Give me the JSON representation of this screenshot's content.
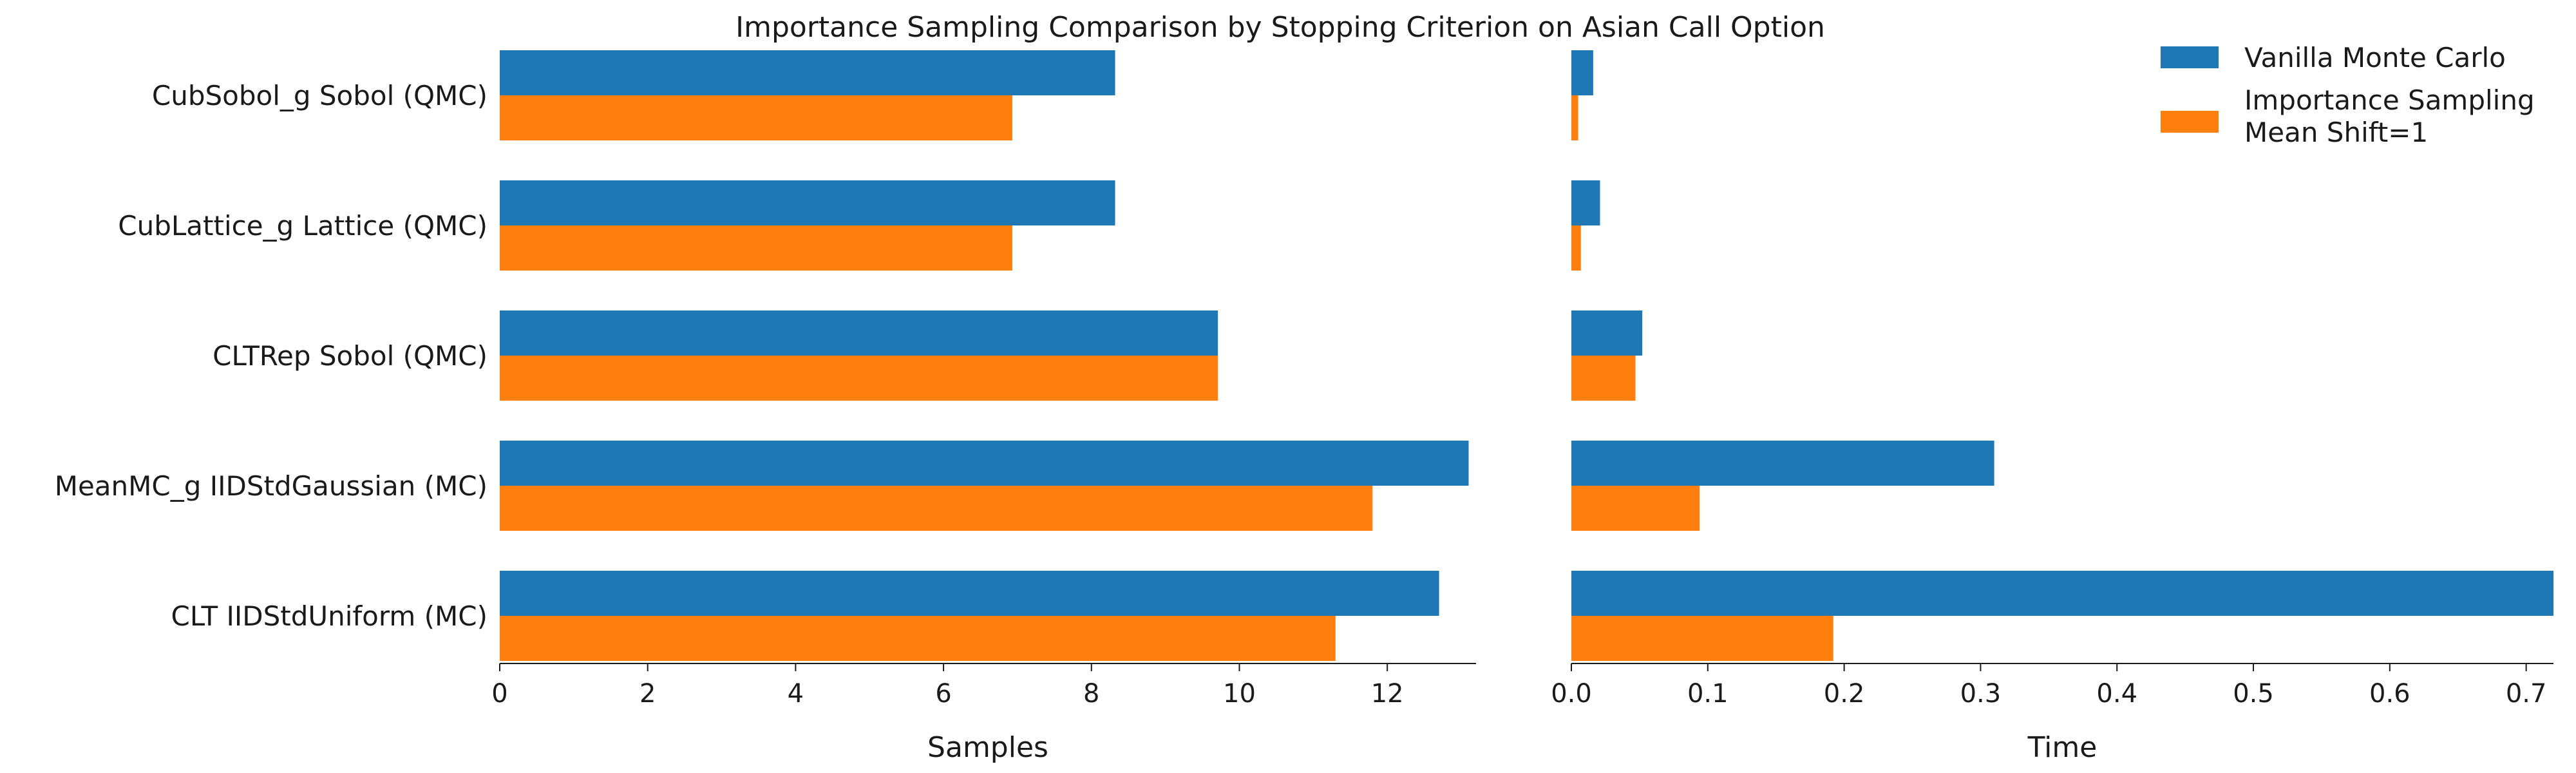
{
  "chart_data": {
    "type": "bar",
    "orientation": "horizontal",
    "title": "Importance Sampling Comparison by Stopping Criterion on Asian Call Option",
    "categories": [
      "CubSobol_g Sobol (QMC)",
      "CubLattice_g Lattice (QMC)",
      "CLTRep Sobol (QMC)",
      "MeanMC_g IIDStdGaussian (MC)",
      "CLT IIDStdUniform (MC)"
    ],
    "legend": {
      "placement": "top-right",
      "entries": [
        "Vanilla Monte Carlo",
        "Importance Sampling\nMean Shift=1"
      ]
    },
    "colors": [
      "#1f77b4",
      "#ff7f0e"
    ],
    "panels": [
      {
        "xlabel": "Samples",
        "xlim": [
          0,
          13.2
        ],
        "xticks": [
          "0",
          "2",
          "4",
          "6",
          "8",
          "10",
          "12"
        ],
        "series": [
          {
            "name": "Vanilla Monte Carlo",
            "values": [
              8.32,
              8.32,
              9.71,
              13.1,
              12.7
            ]
          },
          {
            "name": "Importance Sampling\nMean Shift=1",
            "values": [
              6.93,
              6.93,
              9.71,
              11.8,
              11.3
            ]
          }
        ]
      },
      {
        "xlabel": "Time",
        "xlim": [
          0,
          0.72
        ],
        "xticks": [
          "0.0",
          "0.1",
          "0.2",
          "0.3",
          "0.4",
          "0.5",
          "0.6",
          "0.7"
        ],
        "series": [
          {
            "name": "Vanilla Monte Carlo",
            "values": [
              0.016,
              0.021,
              0.052,
              0.31,
              0.72
            ]
          },
          {
            "name": "Importance Sampling\nMean Shift=1",
            "values": [
              0.005,
              0.007,
              0.047,
              0.094,
              0.192
            ]
          }
        ]
      }
    ],
    "grid": false
  }
}
